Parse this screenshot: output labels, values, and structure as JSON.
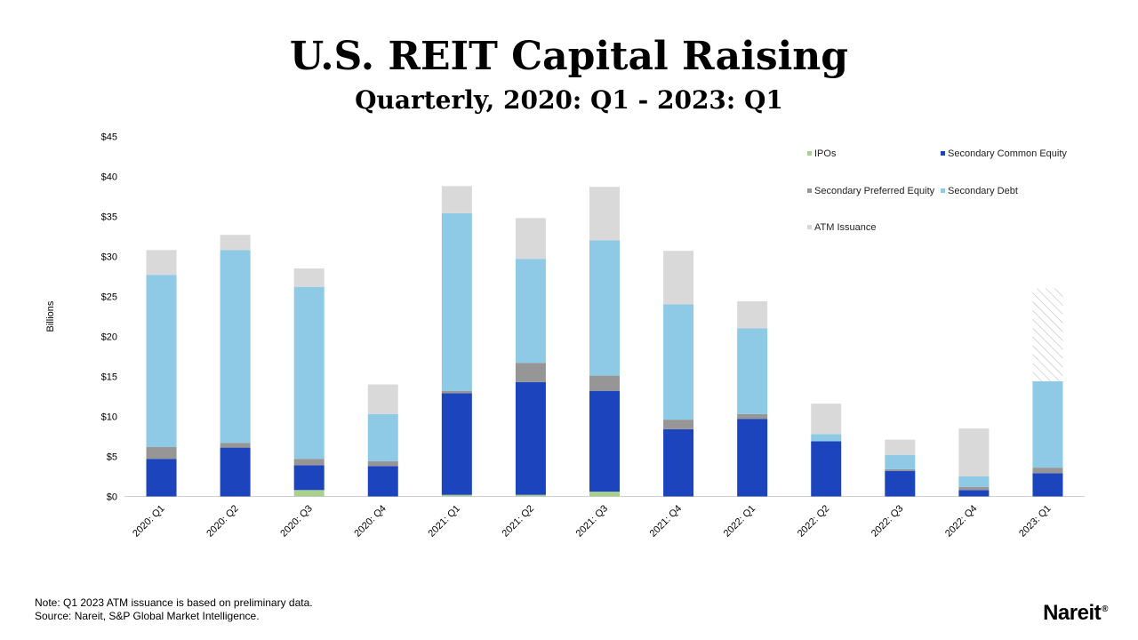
{
  "header": {
    "title": "U.S. REIT Capital Raising",
    "subtitle": "Quarterly, 2020: Q1 - 2023: Q1"
  },
  "footer": {
    "note": "Note: Q1 2023 ATM issuance is based on preliminary data.",
    "source": "Source: Nareit, S&P Global Market Intelligence.",
    "logo_text": "Nareit",
    "logo_mark": "®"
  },
  "colors": {
    "ipos": "#a9d18e",
    "secondary_common_equity": "#1c44bd",
    "secondary_preferred_equity": "#969696",
    "secondary_debt": "#8ecae6",
    "atm_issuance": "#d9d9d9",
    "hatch": "#bfbfbf"
  },
  "chart_data": {
    "type": "bar",
    "stacked": true,
    "ylabel": "Billions",
    "ylim": [
      0,
      45
    ],
    "yticks": [
      0,
      5,
      10,
      15,
      20,
      25,
      30,
      35,
      40,
      45
    ],
    "ytick_labels": [
      "$0",
      "$5",
      "$10",
      "$15",
      "$20",
      "$25",
      "$30",
      "$35",
      "$40",
      "$45"
    ],
    "legend_position": "top-right",
    "categories": [
      "2020: Q1",
      "2020: Q2",
      "2020: Q3",
      "2020: Q4",
      "2021: Q1",
      "2021: Q2",
      "2021: Q3",
      "2021: Q4",
      "2022: Q1",
      "2022: Q2",
      "2022: Q3",
      "2022: Q4",
      "2023: Q1"
    ],
    "series": [
      {
        "name": "IPOs",
        "key": "ipos",
        "values": [
          0,
          0,
          0.8,
          0,
          0.2,
          0.2,
          0.6,
          0,
          0,
          0,
          0,
          0,
          0
        ]
      },
      {
        "name": "Secondary Common Equity",
        "key": "secondary_common_equity",
        "values": [
          4.7,
          6.1,
          3.1,
          3.8,
          12.7,
          14.1,
          12.6,
          8.4,
          9.7,
          6.9,
          3.2,
          0.8,
          2.9
        ]
      },
      {
        "name": "Secondary Preferred Equity",
        "key": "secondary_preferred_equity",
        "values": [
          1.5,
          0.6,
          0.8,
          0.6,
          0.3,
          2.4,
          1.9,
          1.2,
          0.6,
          0,
          0.2,
          0.4,
          0.7
        ]
      },
      {
        "name": "Secondary Debt",
        "key": "secondary_debt",
        "values": [
          21.5,
          24.1,
          21.5,
          5.9,
          22.2,
          13.0,
          16.9,
          14.4,
          10.7,
          0.9,
          1.8,
          1.3,
          10.8
        ]
      },
      {
        "name": "ATM Issuance",
        "key": "atm_issuance",
        "values": [
          3.1,
          1.9,
          2.3,
          3.7,
          3.4,
          5.1,
          6.7,
          6.7,
          3.4,
          3.8,
          1.9,
          6.0,
          11.6
        ],
        "preliminary_index": 12
      }
    ]
  }
}
